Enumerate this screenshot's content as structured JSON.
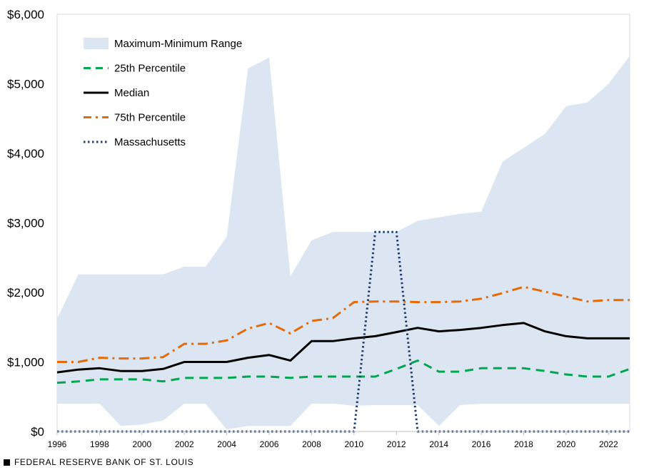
{
  "chart_data": {
    "type": "line",
    "title": "",
    "xlabel": "",
    "ylabel": "",
    "x": [
      1996,
      1997,
      1998,
      1999,
      2000,
      2001,
      2002,
      2003,
      2004,
      2005,
      2006,
      2007,
      2008,
      2009,
      2010,
      2011,
      2012,
      2013,
      2014,
      2015,
      2016,
      2017,
      2018,
      2019,
      2020,
      2021,
      2022,
      2023
    ],
    "x_ticks": [
      "1996",
      "1998",
      "2000",
      "2002",
      "2004",
      "2006",
      "2008",
      "2010",
      "2012",
      "2014",
      "2016",
      "2018",
      "2020",
      "2022"
    ],
    "xlim": [
      1996,
      2023
    ],
    "ylim": [
      0,
      6000
    ],
    "y_ticks": [
      "$0",
      "$1,000",
      "$2,000",
      "$3,000",
      "$4,000",
      "$5,000",
      "$6,000"
    ],
    "y_tick_values": [
      0,
      1000,
      2000,
      3000,
      4000,
      5000,
      6000
    ],
    "range": {
      "name": "Maximum-Minimum Range",
      "color": "#dce6f2",
      "max": [
        1620,
        2260,
        2260,
        2260,
        2260,
        2260,
        2370,
        2370,
        2800,
        5220,
        5380,
        2230,
        2750,
        2870,
        2870,
        2870,
        2870,
        3030,
        3080,
        3130,
        3160,
        3880,
        4080,
        4280,
        4680,
        4730,
        5000,
        5400
      ],
      "min": [
        400,
        400,
        400,
        80,
        100,
        160,
        400,
        400,
        30,
        80,
        80,
        80,
        400,
        400,
        370,
        380,
        380,
        380,
        80,
        380,
        400,
        400,
        400,
        400,
        400,
        400,
        400,
        400
      ]
    },
    "series": [
      {
        "name": "25th Percentile",
        "color": "#00a650",
        "style": "dashed",
        "values": [
          700,
          720,
          750,
          750,
          750,
          720,
          770,
          770,
          770,
          790,
          790,
          770,
          790,
          790,
          790,
          790,
          900,
          1020,
          860,
          860,
          910,
          910,
          910,
          870,
          820,
          790,
          790,
          900
        ]
      },
      {
        "name": "Median",
        "color": "#000000",
        "style": "solid",
        "values": [
          850,
          890,
          910,
          870,
          870,
          900,
          1000,
          1000,
          1000,
          1060,
          1100,
          1020,
          1300,
          1300,
          1340,
          1370,
          1430,
          1490,
          1440,
          1460,
          1490,
          1530,
          1560,
          1440,
          1370,
          1340,
          1340,
          1340
        ]
      },
      {
        "name": "75th Percentile",
        "color": "#e36c09",
        "style": "dashdot",
        "values": [
          1000,
          1000,
          1060,
          1050,
          1050,
          1070,
          1260,
          1260,
          1310,
          1480,
          1560,
          1410,
          1590,
          1630,
          1860,
          1870,
          1870,
          1860,
          1860,
          1870,
          1910,
          1990,
          2080,
          2010,
          1940,
          1870,
          1890,
          1890
        ]
      },
      {
        "name": "Massachusetts",
        "color": "#1f3d6e",
        "style": "dotted",
        "points": [
          [
            1996,
            0
          ],
          [
            2010,
            0
          ],
          [
            2011,
            2870
          ],
          [
            2012,
            2870
          ],
          [
            2013,
            0
          ],
          [
            2023,
            0
          ]
        ]
      }
    ],
    "legend": {
      "position": "top-left",
      "items": [
        "Maximum-Minimum Range",
        "25th Percentile",
        "Median",
        "75th Percentile",
        "Massachusetts"
      ]
    }
  },
  "footer": {
    "source": "FEDERAL RESERVE BANK OF ST. LOUIS"
  }
}
